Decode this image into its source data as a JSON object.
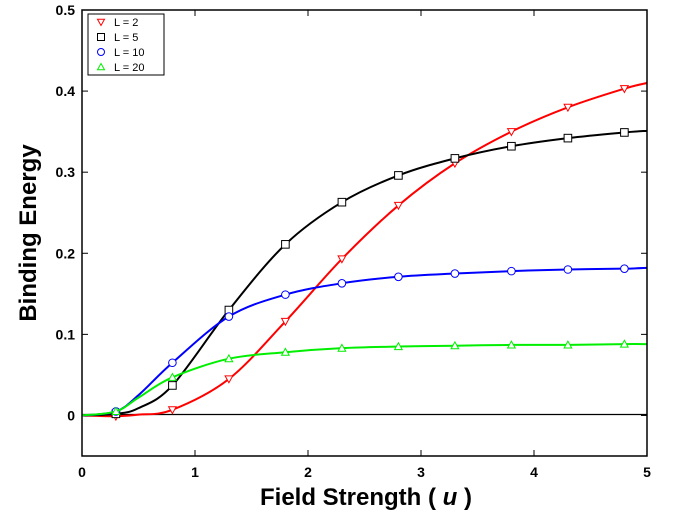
{
  "chart_data": {
    "type": "line",
    "title": "",
    "xlabel": "Field Strength ( u )",
    "xlabel_prefix": "Field Strength (",
    "xlabel_var": "u",
    "xlabel_suffix": ")",
    "ylabel": "Binding Energy",
    "xlim": [
      0,
      5
    ],
    "ylim": [
      -0.05,
      0.5
    ],
    "xticks": [
      0,
      1,
      2,
      3,
      4,
      5
    ],
    "yticks": [
      0,
      0.1,
      0.2,
      0.3,
      0.4,
      0.5
    ],
    "xtick_labels": [
      "0",
      "1",
      "2",
      "3",
      "4",
      "5"
    ],
    "ytick_labels": [
      "0",
      "0.1",
      "0.2",
      "0.3",
      "0.4",
      "0.5"
    ],
    "grid": false,
    "legend_position": "top-left",
    "zero_line": true,
    "series": [
      {
        "name": "L = 2",
        "color": "#ff0000",
        "marker": "triangle-down",
        "x": [
          0,
          0.3,
          0.5,
          0.8,
          1.3,
          1.8,
          2.3,
          2.8,
          3.3,
          3.8,
          4.3,
          4.8,
          5.0
        ],
        "y": [
          0,
          -0.001,
          0.001,
          0.007,
          0.045,
          0.116,
          0.193,
          0.259,
          0.311,
          0.35,
          0.38,
          0.403,
          0.41
        ],
        "markers_x": [
          0.3,
          0.8,
          1.3,
          1.8,
          2.3,
          2.8,
          3.3,
          3.8,
          4.3,
          4.8
        ],
        "markers_y": [
          -0.001,
          0.007,
          0.045,
          0.116,
          0.193,
          0.259,
          0.311,
          0.35,
          0.38,
          0.403
        ]
      },
      {
        "name": "L = 5",
        "color": "#000000",
        "marker": "square",
        "x": [
          0,
          0.3,
          0.5,
          0.8,
          1.3,
          1.8,
          2.3,
          2.8,
          3.3,
          3.8,
          4.3,
          4.8,
          5.0
        ],
        "y": [
          0,
          0.002,
          0.009,
          0.037,
          0.13,
          0.211,
          0.263,
          0.296,
          0.317,
          0.332,
          0.342,
          0.349,
          0.351
        ],
        "markers_x": [
          0.3,
          0.8,
          1.3,
          1.8,
          2.3,
          2.8,
          3.3,
          3.8,
          4.3,
          4.8
        ],
        "markers_y": [
          0.002,
          0.037,
          0.13,
          0.211,
          0.263,
          0.296,
          0.317,
          0.332,
          0.342,
          0.349
        ]
      },
      {
        "name": "L = 10",
        "color": "#0000ff",
        "marker": "circle",
        "x": [
          0,
          0.3,
          0.5,
          0.8,
          1.3,
          1.8,
          2.3,
          2.8,
          3.3,
          3.8,
          4.3,
          4.8,
          5.0
        ],
        "y": [
          0,
          0.005,
          0.025,
          0.065,
          0.122,
          0.149,
          0.163,
          0.171,
          0.175,
          0.178,
          0.18,
          0.181,
          0.182
        ],
        "markers_x": [
          0.3,
          0.8,
          1.3,
          1.8,
          2.3,
          2.8,
          3.3,
          3.8,
          4.3,
          4.8
        ],
        "markers_y": [
          0.005,
          0.065,
          0.122,
          0.149,
          0.163,
          0.171,
          0.175,
          0.178,
          0.18,
          0.181
        ]
      },
      {
        "name": "L = 20",
        "color": "#00ee00",
        "marker": "triangle-up",
        "x": [
          0,
          0.3,
          0.5,
          0.8,
          1.3,
          1.8,
          2.3,
          2.8,
          3.3,
          3.8,
          4.3,
          4.8,
          5.0
        ],
        "y": [
          0,
          0.005,
          0.022,
          0.047,
          0.07,
          0.078,
          0.083,
          0.085,
          0.086,
          0.087,
          0.087,
          0.088,
          0.088
        ],
        "markers_x": [
          0.3,
          0.8,
          1.3,
          1.8,
          2.3,
          2.8,
          3.3,
          3.8,
          4.3,
          4.8
        ],
        "markers_y": [
          0.005,
          0.047,
          0.07,
          0.078,
          0.083,
          0.085,
          0.086,
          0.087,
          0.087,
          0.088
        ]
      }
    ]
  }
}
